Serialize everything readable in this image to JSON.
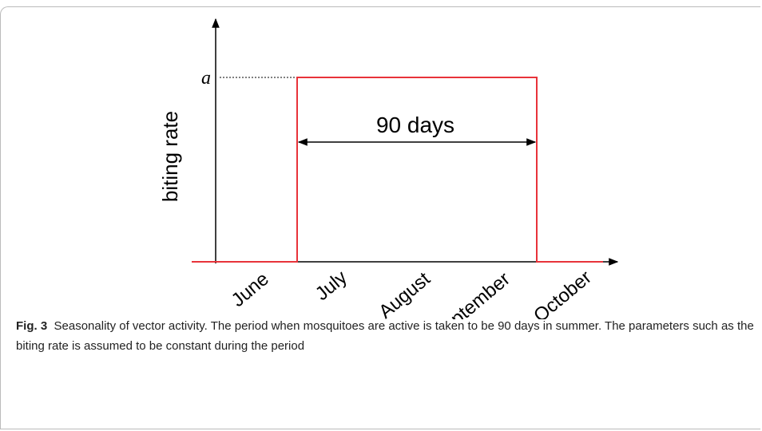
{
  "figure": {
    "y_label": "biting rate",
    "y_mark": "a",
    "annotation": "90 days",
    "months": [
      "June",
      "July",
      "August",
      "September",
      "October"
    ]
  },
  "caption": {
    "label": "Fig. 3",
    "text": "Seasonality of vector activity. The period when mosquitoes are active is taken to be 90 days in summer. The parameters such as the biting rate is assumed to be constant during the period"
  }
}
